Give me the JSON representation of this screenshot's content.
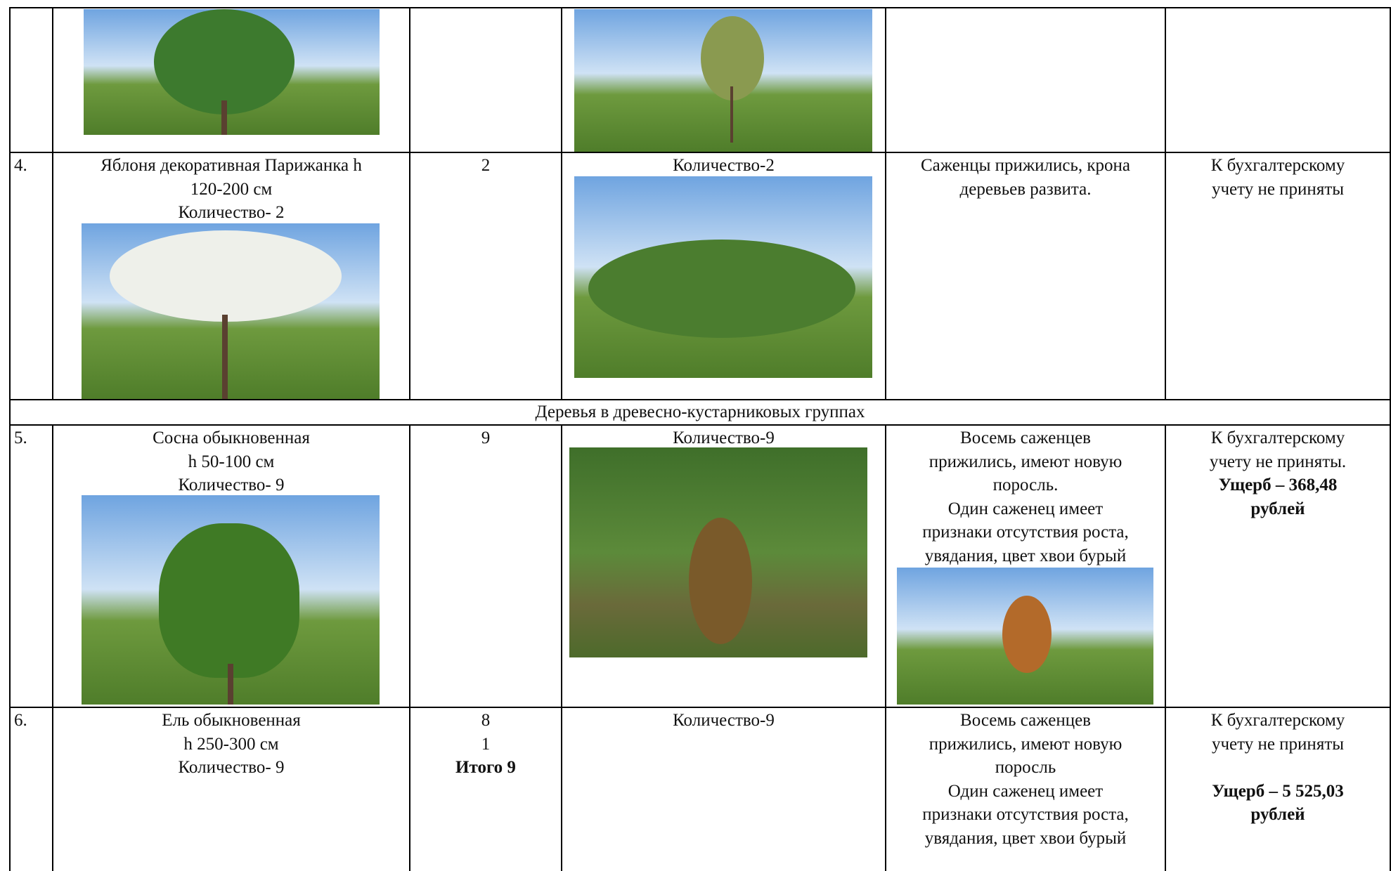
{
  "table": {
    "rows": [
      {
        "number": "4.",
        "name": [
          "Яблоня декоративная Парижанка  h",
          "120-200 см",
          "Количество- 2"
        ],
        "planted": [
          "2"
        ],
        "photo_caption": "Количество-2",
        "condition": [
          "Саженцы прижились, крона",
          "деревьев развита."
        ],
        "accounting": [
          "К бухгалтерскому",
          "учету не приняты"
        ]
      },
      {
        "number": "5.",
        "name": [
          "Сосна обыкновенная",
          "h 50-100 см",
          "Количество- 9"
        ],
        "planted": [
          "9"
        ],
        "photo_caption": "Количество-9",
        "condition": [
          "Восемь саженцев",
          "прижились, имеют новую",
          "поросль.",
          "Один саженец имеет",
          "признаки отсутствия роста,",
          "увядания, цвет хвои бурый"
        ],
        "accounting": [
          "К бухгалтерскому",
          "учету не приняты."
        ],
        "damage": [
          "Ущерб – 368,48",
          "рублей"
        ]
      },
      {
        "number": "6.",
        "name": [
          "Ель обыкновенная",
          "h 250-300 см",
          "Количество- 9"
        ],
        "planted": [
          "8",
          "1"
        ],
        "total": "Итого 9",
        "photo_caption": "Количество-9",
        "condition": [
          "Восемь саженцев",
          "прижились, имеют новую",
          "поросль",
          "Один саженец имеет",
          "признаки отсутствия роста,",
          "увядания, цвет хвои бурый"
        ],
        "accounting": [
          "К бухгалтерскому",
          "учету не приняты"
        ],
        "damage": [
          "Ущерб – 5 525,03",
          "рублей"
        ]
      }
    ],
    "section": "Деревья в древесно-кустарниковых группах"
  }
}
